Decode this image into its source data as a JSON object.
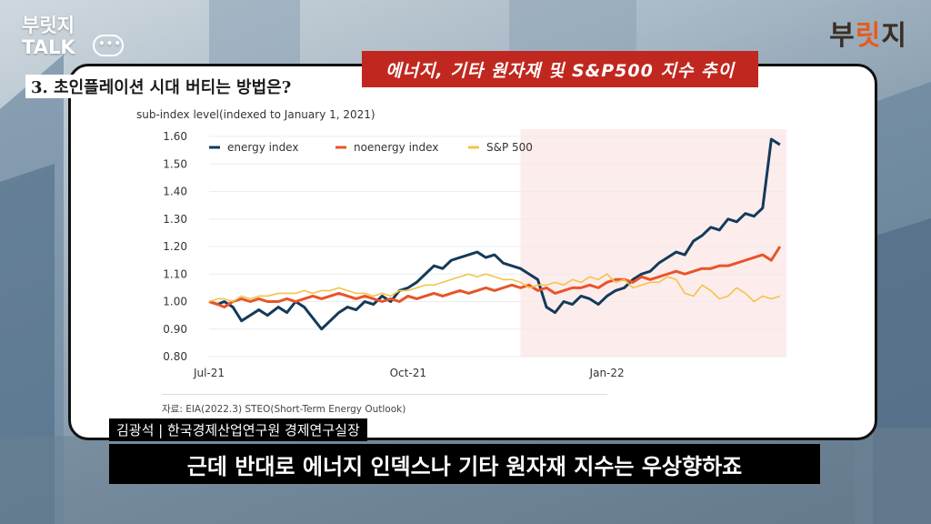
{
  "brand": {
    "left_logo_line1": "부릿지",
    "left_logo_line2": "TALK",
    "right_logo_a": "부",
    "right_logo_b": "릿",
    "right_logo_c": "지"
  },
  "section_title": "3. 초인플레이션 시대 버티는 방법은?",
  "banner_title": "에너지, 기타 원자재 및 S&P500 지수 추이",
  "source": "자료: EIA(2022.3) STEO(Short-Term Energy Outlook)",
  "speaker": "김광석 | 한국경제산업연구원 경제연구실장",
  "subtitle": "근데 반대로 에너지 인덱스나 기타 원자재 지수는 우상향하죠",
  "colors": {
    "energy": "#143a5a",
    "noenergy": "#e8542a",
    "sp500": "#f3c34a",
    "highlight": "#fdecec",
    "banner": "#c0281f"
  },
  "chart_data": {
    "type": "line",
    "ylabel": "sub-index level(indexed to January 1, 2021)",
    "ylim": [
      0.8,
      1.6
    ],
    "yticks": [
      "1.60",
      "1.50",
      "1.40",
      "1.30",
      "1.20",
      "1.10",
      "1.00",
      "0.90",
      "0.80"
    ],
    "xticks": [
      "Jul-21",
      "Oct-21",
      "Jan-22"
    ],
    "grid": true,
    "legend_position": "top-left",
    "highlight_region": [
      "2021-11-22",
      "2022-03-25"
    ],
    "x": [
      "2021-07-01",
      "2021-07-05",
      "2021-07-08",
      "2021-07-12",
      "2021-07-16",
      "2021-07-20",
      "2021-07-24",
      "2021-07-28",
      "2021-08-02",
      "2021-08-06",
      "2021-08-10",
      "2021-08-14",
      "2021-08-18",
      "2021-08-22",
      "2021-08-26",
      "2021-08-30",
      "2021-09-03",
      "2021-09-07",
      "2021-09-11",
      "2021-09-15",
      "2021-09-19",
      "2021-09-23",
      "2021-09-27",
      "2021-10-01",
      "2021-10-05",
      "2021-10-09",
      "2021-10-13",
      "2021-10-17",
      "2021-10-21",
      "2021-10-25",
      "2021-10-29",
      "2021-11-02",
      "2021-11-06",
      "2021-11-10",
      "2021-11-14",
      "2021-11-18",
      "2021-11-22",
      "2021-11-26",
      "2021-11-30",
      "2021-12-04",
      "2021-12-08",
      "2021-12-12",
      "2021-12-16",
      "2021-12-20",
      "2021-12-24",
      "2021-12-28",
      "2022-01-01",
      "2022-01-05",
      "2022-01-09",
      "2022-01-13",
      "2022-01-17",
      "2022-01-21",
      "2022-01-25",
      "2022-01-29",
      "2022-02-02",
      "2022-02-06",
      "2022-02-10",
      "2022-02-14",
      "2022-02-18",
      "2022-02-22",
      "2022-02-26",
      "2022-03-02",
      "2022-03-06",
      "2022-03-10",
      "2022-03-14",
      "2022-03-18",
      "2022-03-22"
    ],
    "series": [
      {
        "name": "energy index",
        "values": [
          1.0,
          0.99,
          1.0,
          0.98,
          0.93,
          0.95,
          0.97,
          0.95,
          0.98,
          0.96,
          1.0,
          0.98,
          0.94,
          0.9,
          0.93,
          0.96,
          0.98,
          0.97,
          1.0,
          0.99,
          1.02,
          1.0,
          1.04,
          1.05,
          1.07,
          1.1,
          1.13,
          1.12,
          1.15,
          1.16,
          1.17,
          1.18,
          1.16,
          1.17,
          1.14,
          1.13,
          1.12,
          1.1,
          1.08,
          0.98,
          0.96,
          1.0,
          0.99,
          1.02,
          1.01,
          0.99,
          1.02,
          1.04,
          1.05,
          1.08,
          1.1,
          1.11,
          1.14,
          1.16,
          1.18,
          1.17,
          1.22,
          1.24,
          1.27,
          1.26,
          1.3,
          1.29,
          1.32,
          1.31,
          1.34,
          1.59,
          1.57
        ]
      },
      {
        "name": "noenergy index",
        "values": [
          1.0,
          0.99,
          0.98,
          1.0,
          1.01,
          1.0,
          1.01,
          1.0,
          1.0,
          1.01,
          1.0,
          1.01,
          1.02,
          1.01,
          1.02,
          1.03,
          1.02,
          1.01,
          1.02,
          1.01,
          1.0,
          1.01,
          1.0,
          1.02,
          1.01,
          1.02,
          1.03,
          1.02,
          1.03,
          1.04,
          1.03,
          1.04,
          1.05,
          1.04,
          1.05,
          1.06,
          1.05,
          1.06,
          1.04,
          1.05,
          1.03,
          1.04,
          1.05,
          1.05,
          1.06,
          1.05,
          1.07,
          1.08,
          1.08,
          1.07,
          1.09,
          1.08,
          1.09,
          1.1,
          1.11,
          1.1,
          1.11,
          1.12,
          1.12,
          1.13,
          1.13,
          1.14,
          1.15,
          1.16,
          1.17,
          1.15,
          1.2
        ]
      },
      {
        "name": "S&P 500",
        "values": [
          1.0,
          1.01,
          1.01,
          1.0,
          1.02,
          1.01,
          1.02,
          1.02,
          1.03,
          1.03,
          1.03,
          1.04,
          1.03,
          1.04,
          1.04,
          1.05,
          1.04,
          1.03,
          1.03,
          1.02,
          1.03,
          1.02,
          1.04,
          1.04,
          1.05,
          1.06,
          1.06,
          1.07,
          1.08,
          1.09,
          1.1,
          1.09,
          1.1,
          1.09,
          1.08,
          1.08,
          1.07,
          1.05,
          1.06,
          1.06,
          1.07,
          1.06,
          1.08,
          1.07,
          1.09,
          1.08,
          1.1,
          1.07,
          1.08,
          1.05,
          1.06,
          1.07,
          1.07,
          1.09,
          1.08,
          1.03,
          1.02,
          1.06,
          1.04,
          1.01,
          1.02,
          1.05,
          1.03,
          1.0,
          1.02,
          1.01,
          1.02
        ]
      }
    ]
  }
}
